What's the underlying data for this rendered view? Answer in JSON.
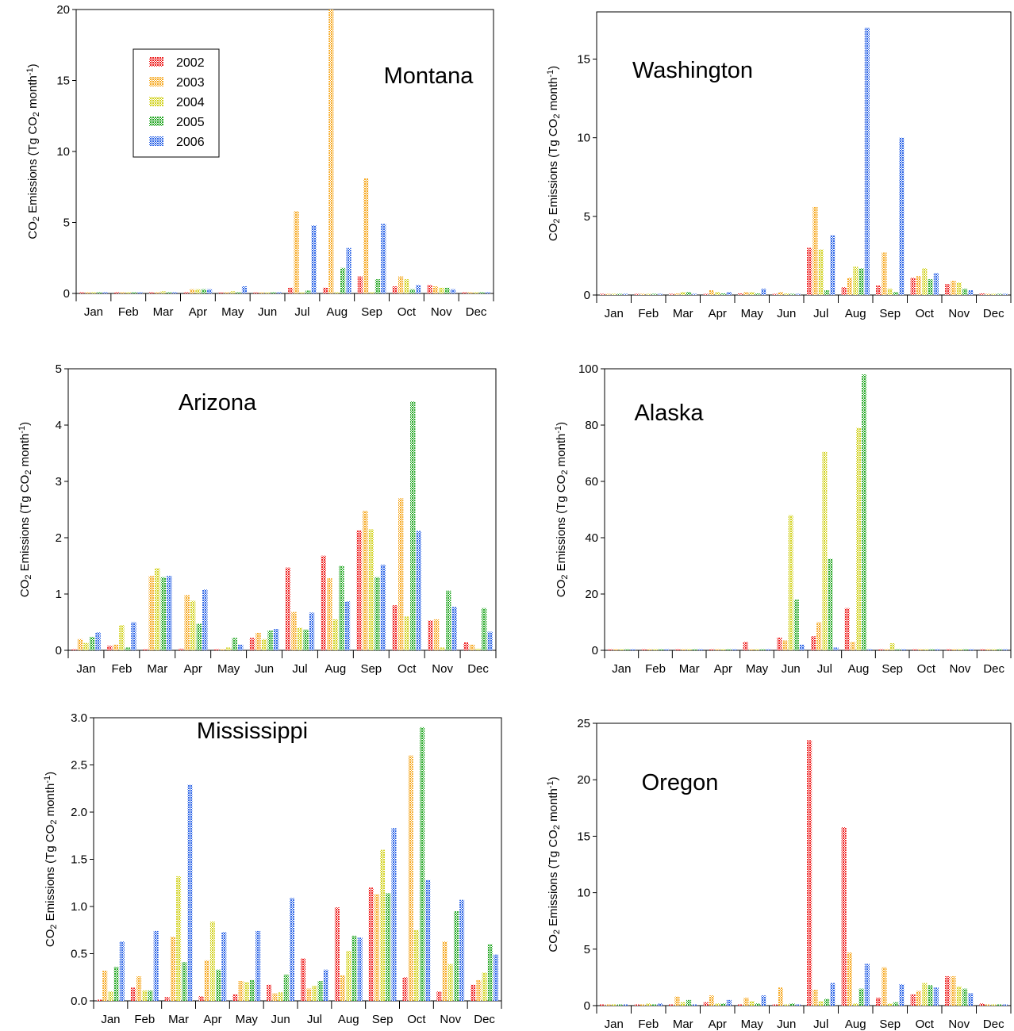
{
  "legend_years": [
    "2002",
    "2003",
    "2004",
    "2005",
    "2006"
  ],
  "series_colors": [
    "#ee2020",
    "#f6a820",
    "#d2d21e",
    "#26a826",
    "#2c64e6"
  ],
  "months": [
    "Jan",
    "Feb",
    "Mar",
    "Apr",
    "May",
    "Jun",
    "Jul",
    "Aug",
    "Sep",
    "Oct",
    "Nov",
    "Dec"
  ],
  "y_axis_label": "CO2 Emissions (Tg CO2 month-1)",
  "chart_data": [
    {
      "type": "bar",
      "title": "Montana",
      "ylabel": "CO2 Emissions (Tg CO2 month-1)",
      "ylim": [
        0,
        20
      ],
      "yticks": [
        "0",
        "5",
        "10",
        "15",
        "20"
      ],
      "legend": "top-left",
      "categories": [
        "Jan",
        "Feb",
        "Mar",
        "Apr",
        "May",
        "Jun",
        "Jul",
        "Aug",
        "Sep",
        "Oct",
        "Nov",
        "Dec"
      ],
      "series": [
        {
          "name": "2002",
          "values": [
            0.1,
            0.1,
            0.1,
            0.1,
            0.05,
            0.05,
            0.4,
            0.4,
            1.2,
            0.5,
            0.6,
            0.1
          ]
        },
        {
          "name": "2003",
          "values": [
            0.1,
            0.1,
            0.1,
            0.3,
            0.1,
            0.05,
            5.8,
            20.0,
            8.1,
            1.2,
            0.5,
            0.1
          ]
        },
        {
          "name": "2004",
          "values": [
            0.1,
            0.1,
            0.15,
            0.3,
            0.15,
            0.05,
            0.05,
            0.1,
            0.1,
            1.0,
            0.4,
            0.1
          ]
        },
        {
          "name": "2005",
          "values": [
            0.1,
            0.1,
            0.1,
            0.3,
            0.1,
            0.1,
            0.2,
            1.8,
            1.0,
            0.3,
            0.4,
            0.1
          ]
        },
        {
          "name": "2006",
          "values": [
            0.1,
            0.1,
            0.1,
            0.3,
            0.5,
            0.1,
            4.8,
            3.2,
            4.9,
            0.6,
            0.3,
            0.1
          ]
        }
      ]
    },
    {
      "type": "bar",
      "title": "Washington",
      "ylabel": "CO2 Emissions (Tg CO2 month-1)",
      "ylim": [
        0,
        18
      ],
      "yticks": [
        "0",
        "5",
        "10",
        "15"
      ],
      "categories": [
        "Jan",
        "Feb",
        "Mar",
        "Apr",
        "May",
        "Jun",
        "Jul",
        "Aug",
        "Sep",
        "Oct",
        "Nov",
        "Dec"
      ],
      "series": [
        {
          "name": "2002",
          "values": [
            0.05,
            0.05,
            0.05,
            0.05,
            0.1,
            0.05,
            3.0,
            0.5,
            0.6,
            1.1,
            0.7,
            0.1
          ]
        },
        {
          "name": "2003",
          "values": [
            0.05,
            0.05,
            0.1,
            0.3,
            0.2,
            0.2,
            5.6,
            1.1,
            2.7,
            1.2,
            0.9,
            0.05
          ]
        },
        {
          "name": "2004",
          "values": [
            0.05,
            0.05,
            0.2,
            0.2,
            0.2,
            0.1,
            2.9,
            1.8,
            0.4,
            1.7,
            0.8,
            0.05
          ]
        },
        {
          "name": "2005",
          "values": [
            0.05,
            0.05,
            0.2,
            0.1,
            0.1,
            0.05,
            0.3,
            1.7,
            0.2,
            1.0,
            0.4,
            0.05
          ]
        },
        {
          "name": "2006",
          "values": [
            0.05,
            0.05,
            0.05,
            0.2,
            0.4,
            0.05,
            3.8,
            17.0,
            10.0,
            1.4,
            0.3,
            0.05
          ]
        }
      ]
    },
    {
      "type": "bar",
      "title": "Arizona",
      "ylabel": "CO2 Emissions (Tg CO2 month-1)",
      "ylim": [
        0,
        5
      ],
      "yticks": [
        "0",
        "1",
        "2",
        "3",
        "4",
        "5"
      ],
      "categories": [
        "Jan",
        "Feb",
        "Mar",
        "Apr",
        "May",
        "Jun",
        "Jul",
        "Aug",
        "Sep",
        "Oct",
        "Nov",
        "Dec"
      ],
      "series": [
        {
          "name": "2002",
          "values": [
            0.02,
            0.08,
            0.02,
            0.03,
            0.02,
            0.22,
            1.47,
            1.68,
            2.13,
            0.8,
            0.53,
            0.14
          ]
        },
        {
          "name": "2003",
          "values": [
            0.2,
            0.1,
            1.32,
            0.98,
            0.02,
            0.31,
            0.68,
            1.28,
            2.48,
            2.7,
            0.55,
            0.1
          ]
        },
        {
          "name": "2004",
          "values": [
            0.13,
            0.45,
            1.46,
            0.88,
            0.05,
            0.2,
            0.4,
            0.55,
            2.15,
            0.6,
            0.05,
            0.03
          ]
        },
        {
          "name": "2005",
          "values": [
            0.24,
            0.05,
            1.3,
            0.47,
            0.22,
            0.35,
            0.37,
            1.5,
            1.3,
            4.42,
            1.06,
            0.75
          ]
        },
        {
          "name": "2006",
          "values": [
            0.32,
            0.5,
            1.32,
            1.08,
            0.1,
            0.38,
            0.67,
            0.87,
            1.52,
            2.12,
            0.77,
            0.33
          ]
        }
      ]
    },
    {
      "type": "bar",
      "title": "Alaska",
      "ylabel": "CO2 Emissions (Tg CO2 month-1)",
      "ylim": [
        0,
        100
      ],
      "yticks": [
        "0",
        "20",
        "40",
        "60",
        "80",
        "100"
      ],
      "categories": [
        "Jan",
        "Feb",
        "Mar",
        "Apr",
        "May",
        "Jun",
        "Jul",
        "Aug",
        "Sep",
        "Oct",
        "Nov",
        "Dec"
      ],
      "series": [
        {
          "name": "2002",
          "values": [
            0,
            0,
            0,
            0,
            3.0,
            4.5,
            5.0,
            15.0,
            0,
            0,
            0,
            0
          ]
        },
        {
          "name": "2003",
          "values": [
            0,
            0,
            0,
            0,
            0,
            3.5,
            10.0,
            3.0,
            0,
            0,
            0,
            0
          ]
        },
        {
          "name": "2004",
          "values": [
            0,
            0,
            0,
            0,
            0,
            48.0,
            70.5,
            79.0,
            2.5,
            0,
            0,
            0
          ]
        },
        {
          "name": "2005",
          "values": [
            0,
            0,
            0,
            0,
            0,
            18.0,
            32.5,
            98.0,
            0,
            0,
            0,
            0
          ]
        },
        {
          "name": "2006",
          "values": [
            0,
            0,
            0,
            0,
            0,
            2.0,
            1.0,
            0,
            0,
            0,
            0,
            0
          ]
        }
      ]
    },
    {
      "type": "bar",
      "title": "Mississippi",
      "ylabel": "CO2 Emissions (Tg CO2 month-1)",
      "ylim": [
        0,
        3.0
      ],
      "yticks": [
        "0.0",
        "0.5",
        "1.0",
        "1.5",
        "2.0",
        "2.5",
        "3.0"
      ],
      "categories": [
        "Jan",
        "Feb",
        "Mar",
        "Apr",
        "May",
        "Jun",
        "Jul",
        "Aug",
        "Sep",
        "Oct",
        "Nov",
        "Dec"
      ],
      "series": [
        {
          "name": "2002",
          "values": [
            0.01,
            0.14,
            0.04,
            0.05,
            0.07,
            0.17,
            0.45,
            0.99,
            1.2,
            0.25,
            0.1,
            0.17
          ]
        },
        {
          "name": "2003",
          "values": [
            0.32,
            0.26,
            0.68,
            0.43,
            0.21,
            0.08,
            0.13,
            0.27,
            1.13,
            2.6,
            0.63,
            0.22
          ]
        },
        {
          "name": "2004",
          "values": [
            0.1,
            0.11,
            1.32,
            0.84,
            0.2,
            0.09,
            0.16,
            0.53,
            1.6,
            0.75,
            0.39,
            0.3
          ]
        },
        {
          "name": "2005",
          "values": [
            0.36,
            0.11,
            0.41,
            0.33,
            0.22,
            0.28,
            0.21,
            0.69,
            1.14,
            2.9,
            0.95,
            0.6
          ]
        },
        {
          "name": "2006",
          "values": [
            0.63,
            0.74,
            2.29,
            0.73,
            0.74,
            1.09,
            0.33,
            0.67,
            1.83,
            1.28,
            1.07,
            0.49
          ]
        }
      ]
    },
    {
      "type": "bar",
      "title": "Oregon",
      "ylabel": "CO2 Emissions (Tg CO2 month-1)",
      "ylim": [
        0,
        25
      ],
      "yticks": [
        "0",
        "5",
        "10",
        "15",
        "20",
        "25"
      ],
      "categories": [
        "Jan",
        "Feb",
        "Mar",
        "Apr",
        "May",
        "Jun",
        "Jul",
        "Aug",
        "Sep",
        "Oct",
        "Nov",
        "Dec"
      ],
      "series": [
        {
          "name": "2002",
          "values": [
            0.1,
            0.1,
            0.1,
            0.3,
            0.1,
            0.1,
            23.5,
            15.8,
            0.7,
            1.0,
            2.6,
            0.2
          ]
        },
        {
          "name": "2003",
          "values": [
            0.1,
            0.1,
            0.8,
            0.9,
            0.7,
            1.6,
            1.4,
            4.7,
            3.4,
            1.3,
            2.6,
            0.1
          ]
        },
        {
          "name": "2004",
          "values": [
            0.1,
            0.2,
            0.3,
            0.2,
            0.4,
            0.1,
            0.4,
            0.2,
            0.2,
            2.0,
            1.7,
            0.1
          ]
        },
        {
          "name": "2005",
          "values": [
            0.1,
            0.1,
            0.5,
            0.2,
            0.2,
            0.2,
            0.6,
            1.5,
            0.3,
            1.8,
            1.5,
            0.1
          ]
        },
        {
          "name": "2006",
          "values": [
            0.1,
            0.2,
            0.1,
            0.5,
            0.9,
            0.1,
            2.0,
            3.7,
            1.9,
            1.6,
            1.1,
            0.1
          ]
        }
      ]
    }
  ]
}
